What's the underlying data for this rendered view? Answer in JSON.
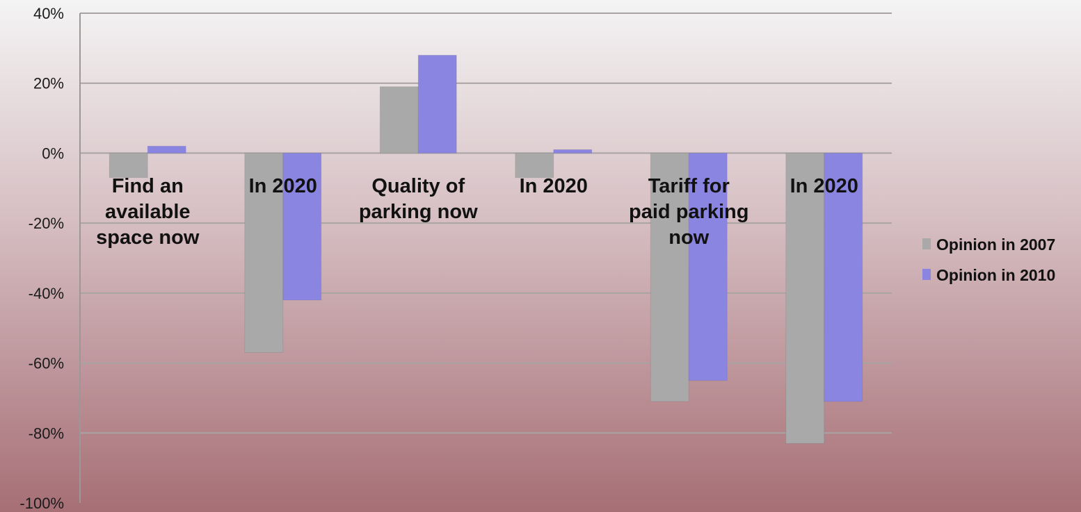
{
  "chart_data": {
    "type": "bar",
    "categories": [
      [
        "Find an",
        "available",
        "space now"
      ],
      [
        "In 2020"
      ],
      [
        "Quality of",
        "parking now"
      ],
      [
        "In 2020"
      ],
      [
        "Tariff for",
        "paid parking",
        "now"
      ],
      [
        "In 2020"
      ]
    ],
    "series": [
      {
        "name": "Opinion in 2007",
        "color": "#a9a9a9",
        "values": [
          -7,
          -57,
          19,
          -7,
          -71,
          -83
        ]
      },
      {
        "name": "Opinion in 2010",
        "color": "#8b85e2",
        "values": [
          2,
          -42,
          28,
          1,
          -65,
          -71
        ]
      }
    ],
    "ylim": [
      -100,
      40
    ],
    "yticks": [
      40,
      20,
      0,
      -20,
      -40,
      -60,
      -80,
      -100
    ],
    "ytick_labels": [
      "40%",
      "20%",
      "0%",
      "-20%",
      "-40%",
      "-60%",
      "-80%",
      "-100%"
    ],
    "grid": true,
    "legend_position": "right",
    "title": "",
    "xlabel": "",
    "ylabel": ""
  }
}
